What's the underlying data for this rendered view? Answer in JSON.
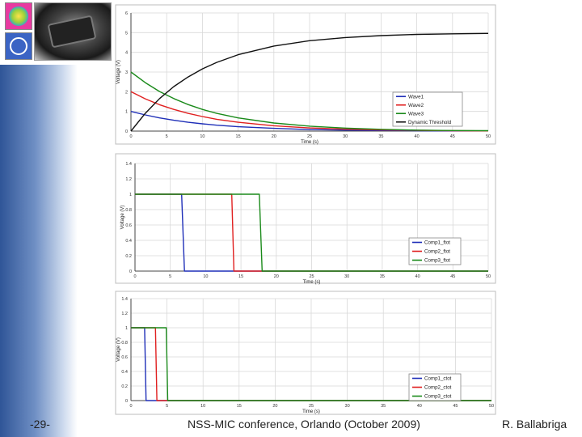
{
  "footer": {
    "page_number": "-29-",
    "conference": "NSS-MIC conference, Orlando (October 2009)",
    "author": "R. Ballabriga"
  },
  "colors": {
    "blue": "#1f2fb8",
    "red": "#e02020",
    "green": "#1a8a1a",
    "black": "#111111",
    "grid": "#d8d8d8"
  },
  "chart_data": [
    {
      "type": "line",
      "ylabel": "Voltage (V)",
      "xlabel": "Time (s)",
      "xlim": [
        0,
        50
      ],
      "ylim": [
        0,
        6
      ],
      "xticks": [
        "0",
        "5",
        "10",
        "15",
        "20",
        "25",
        "30",
        "35",
        "40",
        "45",
        "50"
      ],
      "yticks": [
        "0",
        "1",
        "2",
        "3",
        "4",
        "5",
        "6"
      ],
      "grid": true,
      "legend": "right-lower",
      "series": [
        {
          "name": "Wave1",
          "color": "#1f2fb8",
          "x": [
            0,
            2,
            4,
            6,
            8,
            10,
            12,
            15,
            20,
            25,
            30,
            35,
            40,
            45,
            50
          ],
          "y": [
            1,
            0.82,
            0.67,
            0.55,
            0.45,
            0.37,
            0.3,
            0.22,
            0.14,
            0.08,
            0.05,
            0.03,
            0.02,
            0.01,
            0.01
          ]
        },
        {
          "name": "Wave2",
          "color": "#e02020",
          "x": [
            0,
            2,
            4,
            6,
            8,
            10,
            12,
            15,
            20,
            25,
            30,
            35,
            40,
            45,
            50
          ],
          "y": [
            2,
            1.64,
            1.34,
            1.1,
            0.9,
            0.74,
            0.6,
            0.45,
            0.27,
            0.16,
            0.1,
            0.06,
            0.04,
            0.02,
            0.01
          ]
        },
        {
          "name": "Wave3",
          "color": "#1a8a1a",
          "x": [
            0,
            2,
            4,
            6,
            8,
            10,
            12,
            15,
            20,
            25,
            30,
            35,
            40,
            45,
            50
          ],
          "y": [
            3,
            2.46,
            2.01,
            1.65,
            1.35,
            1.1,
            0.9,
            0.67,
            0.41,
            0.25,
            0.15,
            0.09,
            0.05,
            0.03,
            0.02
          ]
        },
        {
          "name": "Dynamic Threshold",
          "color": "#111111",
          "x": [
            0,
            2,
            4,
            6,
            8,
            10,
            12,
            15,
            20,
            25,
            30,
            35,
            40,
            45,
            50
          ],
          "y": [
            0,
            0.9,
            1.65,
            2.26,
            2.75,
            3.16,
            3.49,
            3.88,
            4.32,
            4.59,
            4.75,
            4.85,
            4.91,
            4.94,
            4.96
          ]
        }
      ]
    },
    {
      "type": "line",
      "ylabel": "Voltage (V)",
      "xlabel": "Time (s)",
      "xlim": [
        0,
        50
      ],
      "ylim": [
        0,
        1.4
      ],
      "xticks": [
        "0",
        "5",
        "10",
        "15",
        "20",
        "25",
        "30",
        "35",
        "40",
        "45",
        "50"
      ],
      "yticks": [
        "0",
        "0.2",
        "0.4",
        "0.6",
        "0.8",
        "1",
        "1.2",
        "1.4"
      ],
      "grid": true,
      "legend": "right-lower",
      "series": [
        {
          "name": "Comp1_ftot",
          "color": "#1f2fb8",
          "x": [
            0,
            6.6,
            7.0,
            50
          ],
          "y": [
            1,
            1,
            0,
            0
          ]
        },
        {
          "name": "Comp2_ftot",
          "color": "#e02020",
          "x": [
            0,
            13.7,
            14.0,
            50
          ],
          "y": [
            1,
            1,
            0,
            0
          ]
        },
        {
          "name": "Comp3_ftot",
          "color": "#1a8a1a",
          "x": [
            0,
            17.6,
            18.0,
            50
          ],
          "y": [
            1,
            1,
            0,
            0
          ]
        }
      ]
    },
    {
      "type": "line",
      "ylabel": "Voltage (V)",
      "xlabel": "Time (s)",
      "xlim": [
        0,
        50
      ],
      "ylim": [
        0,
        1.4
      ],
      "xticks": [
        "0",
        "5",
        "10",
        "15",
        "20",
        "25",
        "30",
        "35",
        "40",
        "45",
        "50"
      ],
      "yticks": [
        "0",
        "0.2",
        "0.4",
        "0.6",
        "0.8",
        "1",
        "1.2",
        "1.4"
      ],
      "grid": true,
      "legend": "right-lower",
      "series": [
        {
          "name": "Comp1_ctot",
          "color": "#1f2fb8",
          "x": [
            0,
            1.9,
            2.1,
            50
          ],
          "y": [
            1,
            1,
            0,
            0
          ]
        },
        {
          "name": "Comp2_ctot",
          "color": "#e02020",
          "x": [
            0,
            3.4,
            3.6,
            50
          ],
          "y": [
            1,
            1,
            0,
            0
          ]
        },
        {
          "name": "Comp3_ctot",
          "color": "#1a8a1a",
          "x": [
            0,
            4.9,
            5.1,
            50
          ],
          "y": [
            1,
            1,
            0,
            0
          ]
        }
      ]
    }
  ]
}
